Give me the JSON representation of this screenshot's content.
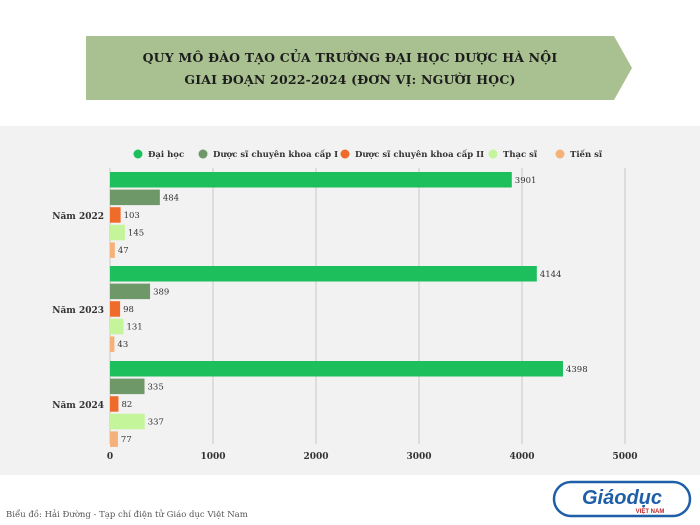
{
  "header": {
    "title_line1": "QUY MÔ ĐÀO TẠO CỦA TRƯỜNG ĐẠI HỌC DƯỢC HÀ NỘI",
    "title_line2": "GIAI ĐOẠN 2022-2024 (ĐƠN VỊ: NGƯỜI HỌC)",
    "banner_color": "#a9c191"
  },
  "footer": {
    "source": "Biểu đồ: Hải Đường - Tạp chí điện tử Giáo dục Việt Nam"
  },
  "logo": {
    "text_main": "Giáodục",
    "text_sub": "VIỆT NAM",
    "color": "#1f5fa8"
  },
  "chart_data": {
    "type": "bar",
    "orientation": "horizontal",
    "categories": [
      "Năm 2022",
      "Năm 2023",
      "Năm 2024"
    ],
    "series": [
      {
        "name": "Đại học",
        "color": "#1dbf5c",
        "values": [
          3901,
          4144,
          4398
        ]
      },
      {
        "name": "Dược sĩ chuyên khoa cấp I",
        "color": "#6f9868",
        "values": [
          484,
          389,
          335
        ]
      },
      {
        "name": "Dược sĩ chuyên khoa cấp II",
        "color": "#f06a2a",
        "values": [
          103,
          98,
          82
        ]
      },
      {
        "name": "Thạc sĩ",
        "color": "#c4f59a",
        "values": [
          145,
          131,
          337
        ]
      },
      {
        "name": "Tiến sĩ",
        "color": "#f4b27a",
        "values": [
          47,
          43,
          77
        ]
      }
    ],
    "xlim": [
      0,
      5000
    ],
    "xticks": [
      0,
      1000,
      2000,
      3000,
      4000,
      5000
    ],
    "grid": true,
    "legend_position": "top"
  }
}
